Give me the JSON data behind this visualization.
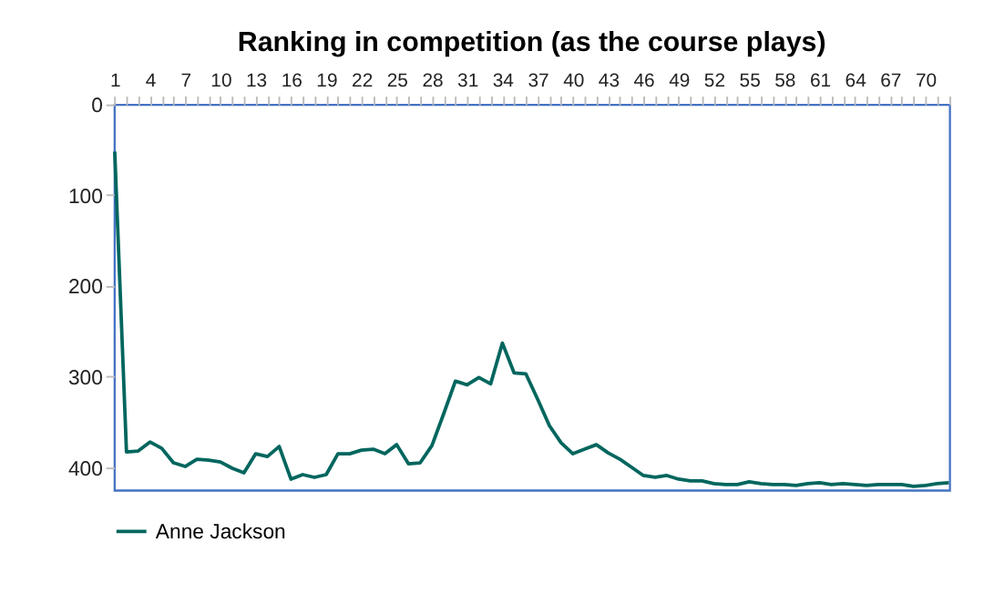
{
  "chart_data": {
    "type": "line",
    "title": "Ranking in competition (as the course plays)",
    "categories": [
      "1",
      null,
      null,
      "4",
      null,
      null,
      "7",
      null,
      null,
      "10",
      null,
      null,
      "13",
      null,
      null,
      "16",
      null,
      null,
      "19",
      null,
      null,
      "22",
      null,
      null,
      "25",
      null,
      null,
      "28",
      null,
      null,
      "31",
      null,
      null,
      "34",
      null,
      null,
      "37",
      null,
      null,
      "40",
      null,
      null,
      "43",
      null,
      null,
      "46",
      null,
      null,
      "49",
      null,
      null,
      "52",
      null,
      null,
      "55",
      null,
      null,
      "58",
      null,
      null,
      "61",
      null,
      null,
      "64",
      null,
      null,
      "67",
      null,
      null,
      "70",
      null,
      null
    ],
    "series": [
      {
        "name": "Anne Jackson",
        "color": "#00665e",
        "values": [
          52,
          383,
          382,
          372,
          379,
          395,
          399,
          391,
          392,
          394,
          401,
          406,
          385,
          388,
          377,
          413,
          408,
          411,
          408,
          385,
          385,
          381,
          380,
          385,
          375,
          396,
          395,
          376,
          341,
          305,
          309,
          301,
          308,
          263,
          296,
          297,
          325,
          354,
          373,
          385,
          380,
          375,
          384,
          391,
          400,
          409,
          411,
          409,
          413,
          415,
          415,
          418,
          419,
          419,
          416,
          418,
          419,
          419,
          420,
          418,
          417,
          419,
          418,
          419,
          420,
          419,
          419,
          419,
          421,
          420,
          418,
          417
        ]
      }
    ],
    "ylim": [
      425,
      0
    ],
    "yticks": [
      0,
      100,
      200,
      300,
      400
    ],
    "legend": "bottom"
  }
}
